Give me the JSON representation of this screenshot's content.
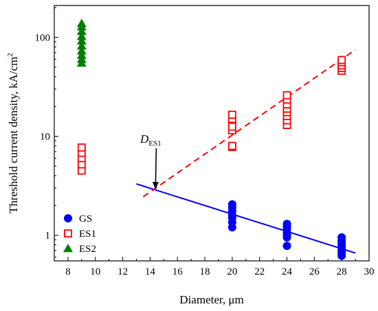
{
  "chart_data": {
    "type": "scatter",
    "xlabel": "Diameter, μm",
    "ylabel": "Threshold current density, kA/cm",
    "ylabel_sup": "2",
    "xlim": [
      7,
      30
    ],
    "ylim": [
      0.55,
      210
    ],
    "yscale": "log",
    "xticks": [
      8,
      10,
      12,
      14,
      16,
      18,
      20,
      22,
      24,
      26,
      28,
      30
    ],
    "yticks": [
      1,
      10,
      100
    ],
    "legend_position": "bottom-left",
    "series": [
      {
        "name": "GS",
        "marker": "filled-circle",
        "color": "#0000ff",
        "points": [
          [
            20,
            1.2
          ],
          [
            20,
            1.35
          ],
          [
            20,
            1.5
          ],
          [
            20,
            1.6
          ],
          [
            20,
            1.75
          ],
          [
            20,
            1.9
          ],
          [
            20,
            2.05
          ],
          [
            24,
            0.78
          ],
          [
            24,
            0.95
          ],
          [
            24,
            1.0
          ],
          [
            24,
            1.05
          ],
          [
            24,
            1.15
          ],
          [
            24,
            1.22
          ],
          [
            24,
            1.3
          ],
          [
            28,
            0.62
          ],
          [
            28,
            0.66
          ],
          [
            28,
            0.7
          ],
          [
            28,
            0.74
          ],
          [
            28,
            0.78
          ],
          [
            28,
            0.83
          ],
          [
            28,
            0.88
          ],
          [
            28,
            0.95
          ]
        ]
      },
      {
        "name": "ES1",
        "marker": "open-square",
        "color": "#ff0000",
        "points": [
          [
            9,
            4.5
          ],
          [
            9,
            5.2
          ],
          [
            9,
            6.0
          ],
          [
            9,
            6.8
          ],
          [
            9,
            7.7
          ],
          [
            20,
            7.8
          ],
          [
            20,
            8.0
          ],
          [
            20,
            11.5
          ],
          [
            20,
            12.5
          ],
          [
            20,
            15.0
          ],
          [
            20,
            16.5
          ],
          [
            24,
            13.0
          ],
          [
            24,
            14.5
          ],
          [
            24,
            16.0
          ],
          [
            24,
            17.5
          ],
          [
            24,
            19.0
          ],
          [
            24,
            21.0
          ],
          [
            24,
            23.5
          ],
          [
            24,
            26.0
          ],
          [
            28,
            46.0
          ],
          [
            28,
            49.0
          ],
          [
            28,
            52.0
          ],
          [
            28,
            56.0
          ],
          [
            28,
            59.0
          ]
        ]
      },
      {
        "name": "ES2",
        "marker": "filled-triangle",
        "color": "#008000",
        "points": [
          [
            9,
            55
          ],
          [
            9,
            60
          ],
          [
            9,
            66
          ],
          [
            9,
            73
          ],
          [
            9,
            82
          ],
          [
            9,
            92
          ],
          [
            9,
            102
          ],
          [
            9,
            115
          ],
          [
            9,
            128
          ],
          [
            9,
            138
          ]
        ]
      }
    ],
    "fit_lines": [
      {
        "series": "GS",
        "style": "solid",
        "color": "#0000ff",
        "x": [
          13,
          29
        ],
        "y": [
          3.3,
          0.66
        ]
      },
      {
        "series": "ES1",
        "style": "dashed",
        "color": "#ff0000",
        "x": [
          13.5,
          29
        ],
        "y": [
          2.45,
          75
        ]
      }
    ],
    "annotation": {
      "text": "D",
      "subscript": "ES1",
      "arrow_to": [
        14.4,
        2.85
      ]
    }
  }
}
